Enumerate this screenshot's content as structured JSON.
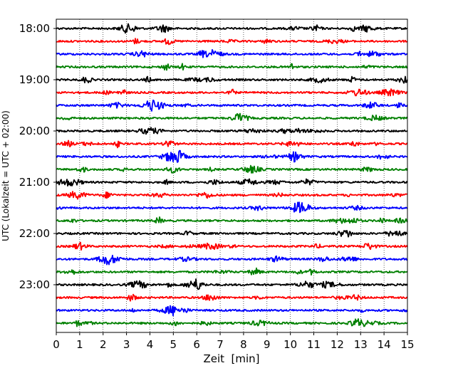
{
  "chart_data": {
    "type": "line",
    "chart_kind": "helicorder",
    "title": "",
    "xlabel": "Zeit  [min]",
    "ylabel": "UTC (Lokalzeit = UTC + 02:00)",
    "xlim": [
      0,
      15
    ],
    "x_ticks": [
      "0",
      "1",
      "2",
      "3",
      "4",
      "5",
      "6",
      "7",
      "8",
      "9",
      "10",
      "11",
      "12",
      "13",
      "14",
      "15"
    ],
    "y_tick_labels": [
      "18:00",
      "19:00",
      "20:00",
      "21:00",
      "22:00",
      "23:00"
    ],
    "trace_interval_min": 15,
    "grid": {
      "x": true,
      "style": "dotted"
    },
    "legend": "none",
    "color_cycle": [
      "#000000",
      "#ff0000",
      "#0000ff",
      "#008000"
    ],
    "traces": [
      {
        "start": "18:00",
        "color": "#000000"
      },
      {
        "start": "18:15",
        "color": "#ff0000"
      },
      {
        "start": "18:30",
        "color": "#0000ff"
      },
      {
        "start": "18:45",
        "color": "#008000"
      },
      {
        "start": "19:00",
        "color": "#000000"
      },
      {
        "start": "19:15",
        "color": "#ff0000"
      },
      {
        "start": "19:30",
        "color": "#0000ff"
      },
      {
        "start": "19:45",
        "color": "#008000"
      },
      {
        "start": "20:00",
        "color": "#000000"
      },
      {
        "start": "20:15",
        "color": "#ff0000"
      },
      {
        "start": "20:30",
        "color": "#0000ff"
      },
      {
        "start": "20:45",
        "color": "#008000"
      },
      {
        "start": "21:00",
        "color": "#000000"
      },
      {
        "start": "21:15",
        "color": "#ff0000"
      },
      {
        "start": "21:30",
        "color": "#0000ff"
      },
      {
        "start": "21:45",
        "color": "#008000"
      },
      {
        "start": "22:00",
        "color": "#000000"
      },
      {
        "start": "22:15",
        "color": "#ff0000"
      },
      {
        "start": "22:30",
        "color": "#0000ff"
      },
      {
        "start": "22:45",
        "color": "#008000"
      },
      {
        "start": "23:00",
        "color": "#000000"
      },
      {
        "start": "23:15",
        "color": "#ff0000"
      },
      {
        "start": "23:30",
        "color": "#0000ff"
      },
      {
        "start": "23:45",
        "color": "#008000"
      }
    ]
  }
}
